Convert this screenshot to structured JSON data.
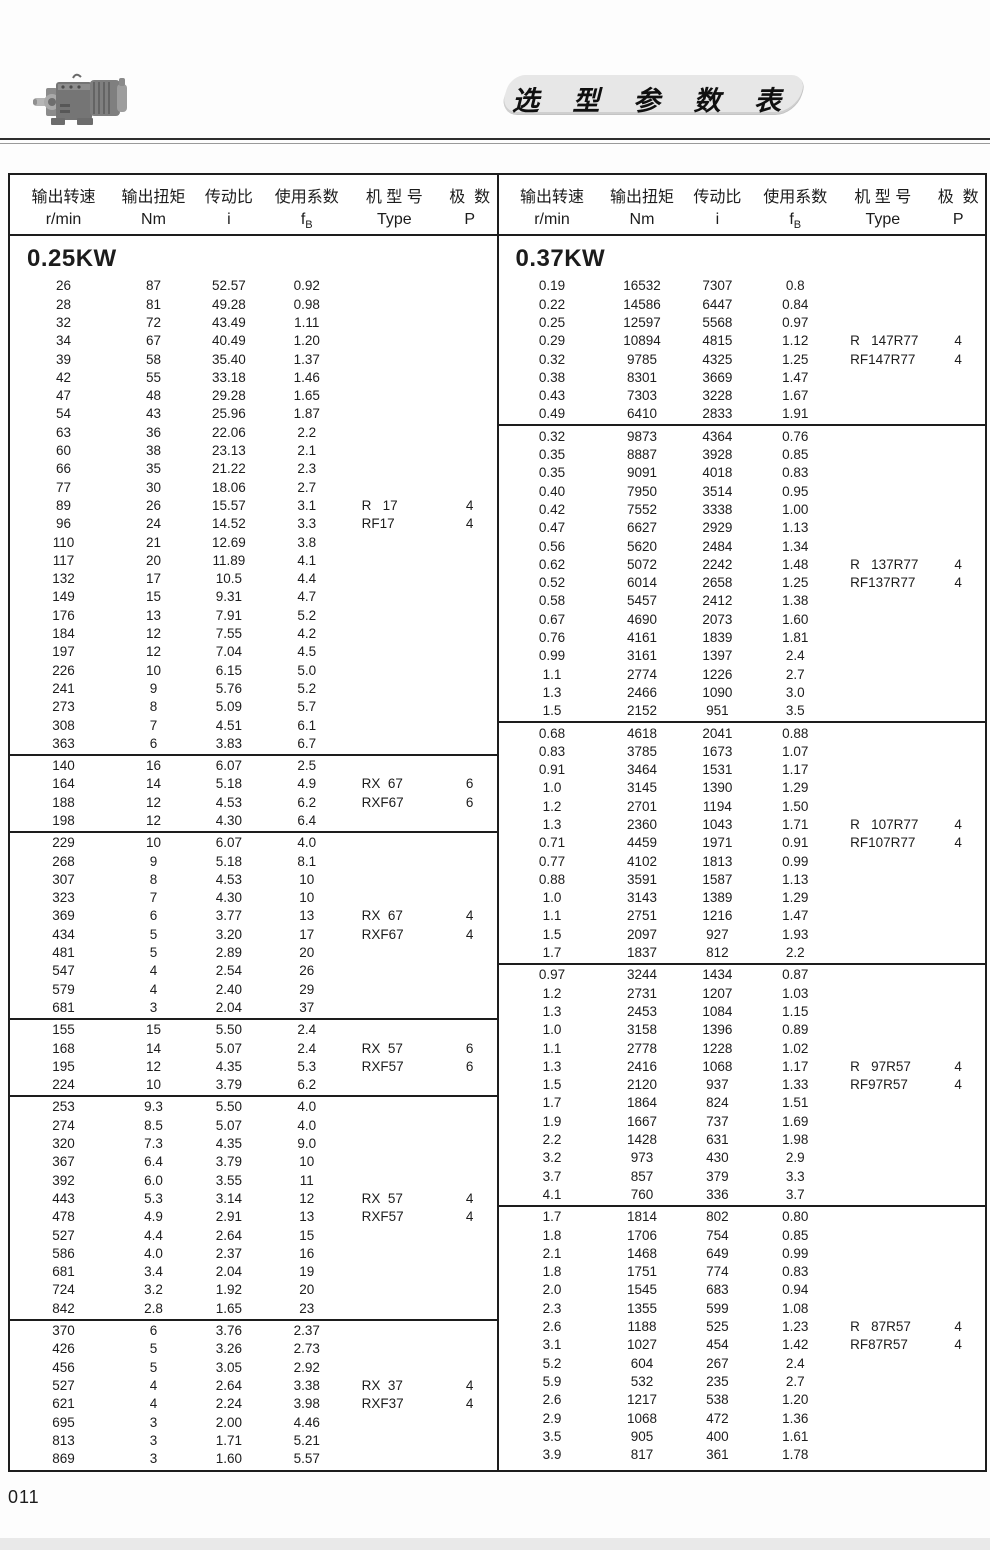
{
  "page": {
    "title": "选 型 参 数 表",
    "page_number": "011"
  },
  "headers": {
    "c1_cn": "输出转速",
    "c1_en": "r/min",
    "c2_cn": "输出扭矩",
    "c2_en": "Nm",
    "c3_cn": "传动比",
    "c3_en": "i",
    "c4_cn": "使用系数",
    "c4_f": "f",
    "c4_sub": "B",
    "c5_cn": "机 型 号",
    "c5_en": "Type",
    "c6_cn": "极  数",
    "c6_en": "P"
  },
  "left_table": {
    "power": "0.25KW",
    "sections": [
      {
        "rows": [
          [
            "26",
            "87",
            "52.57",
            "0.92",
            "",
            ""
          ],
          [
            "28",
            "81",
            "49.28",
            "0.98",
            "",
            ""
          ],
          [
            "32",
            "72",
            "43.49",
            "1.11",
            "",
            ""
          ],
          [
            "34",
            "67",
            "40.49",
            "1.20",
            "",
            ""
          ],
          [
            "39",
            "58",
            "35.40",
            "1.37",
            "",
            ""
          ],
          [
            "42",
            "55",
            "33.18",
            "1.46",
            "",
            ""
          ],
          [
            "47",
            "48",
            "29.28",
            "1.65",
            "",
            ""
          ],
          [
            "54",
            "43",
            "25.96",
            "1.87",
            "",
            ""
          ],
          [
            "63",
            "36",
            "22.06",
            "2.2",
            "",
            ""
          ],
          [
            "60",
            "38",
            "23.13",
            "2.1",
            "",
            ""
          ],
          [
            "66",
            "35",
            "21.22",
            "2.3",
            "",
            ""
          ],
          [
            "77",
            "30",
            "18.06",
            "2.7",
            "",
            ""
          ],
          [
            "89",
            "26",
            "15.57",
            "3.1",
            "R   17",
            "4"
          ],
          [
            "96",
            "24",
            "14.52",
            "3.3",
            "RF17",
            "4"
          ],
          [
            "110",
            "21",
            "12.69",
            "3.8",
            "",
            ""
          ],
          [
            "117",
            "20",
            "11.89",
            "4.1",
            "",
            ""
          ],
          [
            "132",
            "17",
            "10.5",
            "4.4",
            "",
            ""
          ],
          [
            "149",
            "15",
            "9.31",
            "4.7",
            "",
            ""
          ],
          [
            "176",
            "13",
            "7.91",
            "5.2",
            "",
            ""
          ],
          [
            "184",
            "12",
            "7.55",
            "4.2",
            "",
            ""
          ],
          [
            "197",
            "12",
            "7.04",
            "4.5",
            "",
            ""
          ],
          [
            "226",
            "10",
            "6.15",
            "5.0",
            "",
            ""
          ],
          [
            "241",
            "9",
            "5.76",
            "5.2",
            "",
            ""
          ],
          [
            "273",
            "8",
            "5.09",
            "5.7",
            "",
            ""
          ],
          [
            "308",
            "7",
            "4.51",
            "6.1",
            "",
            ""
          ],
          [
            "363",
            "6",
            "3.83",
            "6.7",
            "",
            ""
          ]
        ]
      },
      {
        "rows": [
          [
            "140",
            "16",
            "6.07",
            "2.5",
            "",
            ""
          ],
          [
            "164",
            "14",
            "5.18",
            "4.9",
            "RX  67",
            "6"
          ],
          [
            "188",
            "12",
            "4.53",
            "6.2",
            "RXF67",
            "6"
          ],
          [
            "198",
            "12",
            "4.30",
            "6.4",
            "",
            ""
          ]
        ]
      },
      {
        "rows": [
          [
            "229",
            "10",
            "6.07",
            "4.0",
            "",
            ""
          ],
          [
            "268",
            "9",
            "5.18",
            "8.1",
            "",
            ""
          ],
          [
            "307",
            "8",
            "4.53",
            "10",
            "",
            ""
          ],
          [
            "323",
            "7",
            "4.30",
            "10",
            "",
            ""
          ],
          [
            "369",
            "6",
            "3.77",
            "13",
            "RX  67",
            "4"
          ],
          [
            "434",
            "5",
            "3.20",
            "17",
            "RXF67",
            "4"
          ],
          [
            "481",
            "5",
            "2.89",
            "20",
            "",
            ""
          ],
          [
            "547",
            "4",
            "2.54",
            "26",
            "",
            ""
          ],
          [
            "579",
            "4",
            "2.40",
            "29",
            "",
            ""
          ],
          [
            "681",
            "3",
            "2.04",
            "37",
            "",
            ""
          ]
        ]
      },
      {
        "rows": [
          [
            "155",
            "15",
            "5.50",
            "2.4",
            "",
            ""
          ],
          [
            "168",
            "14",
            "5.07",
            "2.4",
            "RX  57",
            "6"
          ],
          [
            "195",
            "12",
            "4.35",
            "5.3",
            "RXF57",
            "6"
          ],
          [
            "224",
            "10",
            "3.79",
            "6.2",
            "",
            ""
          ]
        ]
      },
      {
        "rows": [
          [
            "253",
            "9.3",
            "5.50",
            "4.0",
            "",
            ""
          ],
          [
            "274",
            "8.5",
            "5.07",
            "4.0",
            "",
            ""
          ],
          [
            "320",
            "7.3",
            "4.35",
            "9.0",
            "",
            ""
          ],
          [
            "367",
            "6.4",
            "3.79",
            "10",
            "",
            ""
          ],
          [
            "392",
            "6.0",
            "3.55",
            "11",
            "",
            ""
          ],
          [
            "443",
            "5.3",
            "3.14",
            "12",
            "RX  57",
            "4"
          ],
          [
            "478",
            "4.9",
            "2.91",
            "13",
            "RXF57",
            "4"
          ],
          [
            "527",
            "4.4",
            "2.64",
            "15",
            "",
            ""
          ],
          [
            "586",
            "4.0",
            "2.37",
            "16",
            "",
            ""
          ],
          [
            "681",
            "3.4",
            "2.04",
            "19",
            "",
            ""
          ],
          [
            "724",
            "3.2",
            "1.92",
            "20",
            "",
            ""
          ],
          [
            "842",
            "2.8",
            "1.65",
            "23",
            "",
            ""
          ]
        ]
      },
      {
        "rows": [
          [
            "370",
            "6",
            "3.76",
            "2.37",
            "",
            ""
          ],
          [
            "426",
            "5",
            "3.26",
            "2.73",
            "",
            ""
          ],
          [
            "456",
            "5",
            "3.05",
            "2.92",
            "",
            ""
          ],
          [
            "527",
            "4",
            "2.64",
            "3.38",
            "RX  37",
            "4"
          ],
          [
            "621",
            "4",
            "2.24",
            "3.98",
            "RXF37",
            "4"
          ],
          [
            "695",
            "3",
            "2.00",
            "4.46",
            "",
            ""
          ],
          [
            "813",
            "3",
            "1.71",
            "5.21",
            "",
            ""
          ],
          [
            "869",
            "3",
            "1.60",
            "5.57",
            "",
            ""
          ]
        ]
      }
    ]
  },
  "right_table": {
    "power": "0.37KW",
    "sections": [
      {
        "rows": [
          [
            "0.19",
            "16532",
            "7307",
            "0.8",
            "",
            ""
          ],
          [
            "0.22",
            "14586",
            "6447",
            "0.84",
            "",
            ""
          ],
          [
            "0.25",
            "12597",
            "5568",
            "0.97",
            "",
            ""
          ],
          [
            "0.29",
            "10894",
            "4815",
            "1.12",
            "R   147R77",
            "4"
          ],
          [
            "0.32",
            "9785",
            "4325",
            "1.25",
            "RF147R77",
            "4"
          ],
          [
            "0.38",
            "8301",
            "3669",
            "1.47",
            "",
            ""
          ],
          [
            "0.43",
            "7303",
            "3228",
            "1.67",
            "",
            ""
          ],
          [
            "0.49",
            "6410",
            "2833",
            "1.91",
            "",
            ""
          ]
        ]
      },
      {
        "rows": [
          [
            "0.32",
            "9873",
            "4364",
            "0.76",
            "",
            ""
          ],
          [
            "0.35",
            "8887",
            "3928",
            "0.85",
            "",
            ""
          ],
          [
            "0.35",
            "9091",
            "4018",
            "0.83",
            "",
            ""
          ],
          [
            "0.40",
            "7950",
            "3514",
            "0.95",
            "",
            ""
          ],
          [
            "0.42",
            "7552",
            "3338",
            "1.00",
            "",
            ""
          ],
          [
            "0.47",
            "6627",
            "2929",
            "1.13",
            "",
            ""
          ],
          [
            "0.56",
            "5620",
            "2484",
            "1.34",
            "",
            ""
          ],
          [
            "0.62",
            "5072",
            "2242",
            "1.48",
            "R   137R77",
            "4"
          ],
          [
            "0.52",
            "6014",
            "2658",
            "1.25",
            "RF137R77",
            "4"
          ],
          [
            "0.58",
            "5457",
            "2412",
            "1.38",
            "",
            ""
          ],
          [
            "0.67",
            "4690",
            "2073",
            "1.60",
            "",
            ""
          ],
          [
            "0.76",
            "4161",
            "1839",
            "1.81",
            "",
            ""
          ],
          [
            "0.99",
            "3161",
            "1397",
            "2.4",
            "",
            ""
          ],
          [
            "1.1",
            "2774",
            "1226",
            "2.7",
            "",
            ""
          ],
          [
            "1.3",
            "2466",
            "1090",
            "3.0",
            "",
            ""
          ],
          [
            "1.5",
            "2152",
            "951",
            "3.5",
            "",
            ""
          ]
        ]
      },
      {
        "rows": [
          [
            "0.68",
            "4618",
            "2041",
            "0.88",
            "",
            ""
          ],
          [
            "0.83",
            "3785",
            "1673",
            "1.07",
            "",
            ""
          ],
          [
            "0.91",
            "3464",
            "1531",
            "1.17",
            "",
            ""
          ],
          [
            "1.0",
            "3145",
            "1390",
            "1.29",
            "",
            ""
          ],
          [
            "1.2",
            "2701",
            "1194",
            "1.50",
            "",
            ""
          ],
          [
            "1.3",
            "2360",
            "1043",
            "1.71",
            "R   107R77",
            "4"
          ],
          [
            "0.71",
            "4459",
            "1971",
            "0.91",
            "RF107R77",
            "4"
          ],
          [
            "0.77",
            "4102",
            "1813",
            "0.99",
            "",
            ""
          ],
          [
            "0.88",
            "3591",
            "1587",
            "1.13",
            "",
            ""
          ],
          [
            "1.0",
            "3143",
            "1389",
            "1.29",
            "",
            ""
          ],
          [
            "1.1",
            "2751",
            "1216",
            "1.47",
            "",
            ""
          ],
          [
            "1.5",
            "2097",
            "927",
            "1.93",
            "",
            ""
          ],
          [
            "1.7",
            "1837",
            "812",
            "2.2",
            "",
            ""
          ]
        ]
      },
      {
        "rows": [
          [
            "0.97",
            "3244",
            "1434",
            "0.87",
            "",
            ""
          ],
          [
            "1.2",
            "2731",
            "1207",
            "1.03",
            "",
            ""
          ],
          [
            "1.3",
            "2453",
            "1084",
            "1.15",
            "",
            ""
          ],
          [
            "1.0",
            "3158",
            "1396",
            "0.89",
            "",
            ""
          ],
          [
            "1.1",
            "2778",
            "1228",
            "1.02",
            "",
            ""
          ],
          [
            "1.3",
            "2416",
            "1068",
            "1.17",
            "R   97R57",
            "4"
          ],
          [
            "1.5",
            "2120",
            "937",
            "1.33",
            "RF97R57",
            "4"
          ],
          [
            "1.7",
            "1864",
            "824",
            "1.51",
            "",
            ""
          ],
          [
            "1.9",
            "1667",
            "737",
            "1.69",
            "",
            ""
          ],
          [
            "2.2",
            "1428",
            "631",
            "1.98",
            "",
            ""
          ],
          [
            "3.2",
            "973",
            "430",
            "2.9",
            "",
            ""
          ],
          [
            "3.7",
            "857",
            "379",
            "3.3",
            "",
            ""
          ],
          [
            "4.1",
            "760",
            "336",
            "3.7",
            "",
            ""
          ]
        ]
      },
      {
        "rows": [
          [
            "1.7",
            "1814",
            "802",
            "0.80",
            "",
            ""
          ],
          [
            "1.8",
            "1706",
            "754",
            "0.85",
            "",
            ""
          ],
          [
            "2.1",
            "1468",
            "649",
            "0.99",
            "",
            ""
          ],
          [
            "1.8",
            "1751",
            "774",
            "0.83",
            "",
            ""
          ],
          [
            "2.0",
            "1545",
            "683",
            "0.94",
            "",
            ""
          ],
          [
            "2.3",
            "1355",
            "599",
            "1.08",
            "",
            ""
          ],
          [
            "2.6",
            "1188",
            "525",
            "1.23",
            "R   87R57",
            "4"
          ],
          [
            "3.1",
            "1027",
            "454",
            "1.42",
            "RF87R57",
            "4"
          ],
          [
            "5.2",
            "604",
            "267",
            "2.4",
            "",
            ""
          ],
          [
            "5.9",
            "532",
            "235",
            "2.7",
            "",
            ""
          ],
          [
            "2.6",
            "1217",
            "538",
            "1.20",
            "",
            ""
          ],
          [
            "2.9",
            "1068",
            "472",
            "1.36",
            "",
            ""
          ],
          [
            "3.5",
            "905",
            "400",
            "1.61",
            "",
            ""
          ],
          [
            "3.9",
            "817",
            "361",
            "1.78",
            "",
            ""
          ]
        ]
      }
    ]
  }
}
